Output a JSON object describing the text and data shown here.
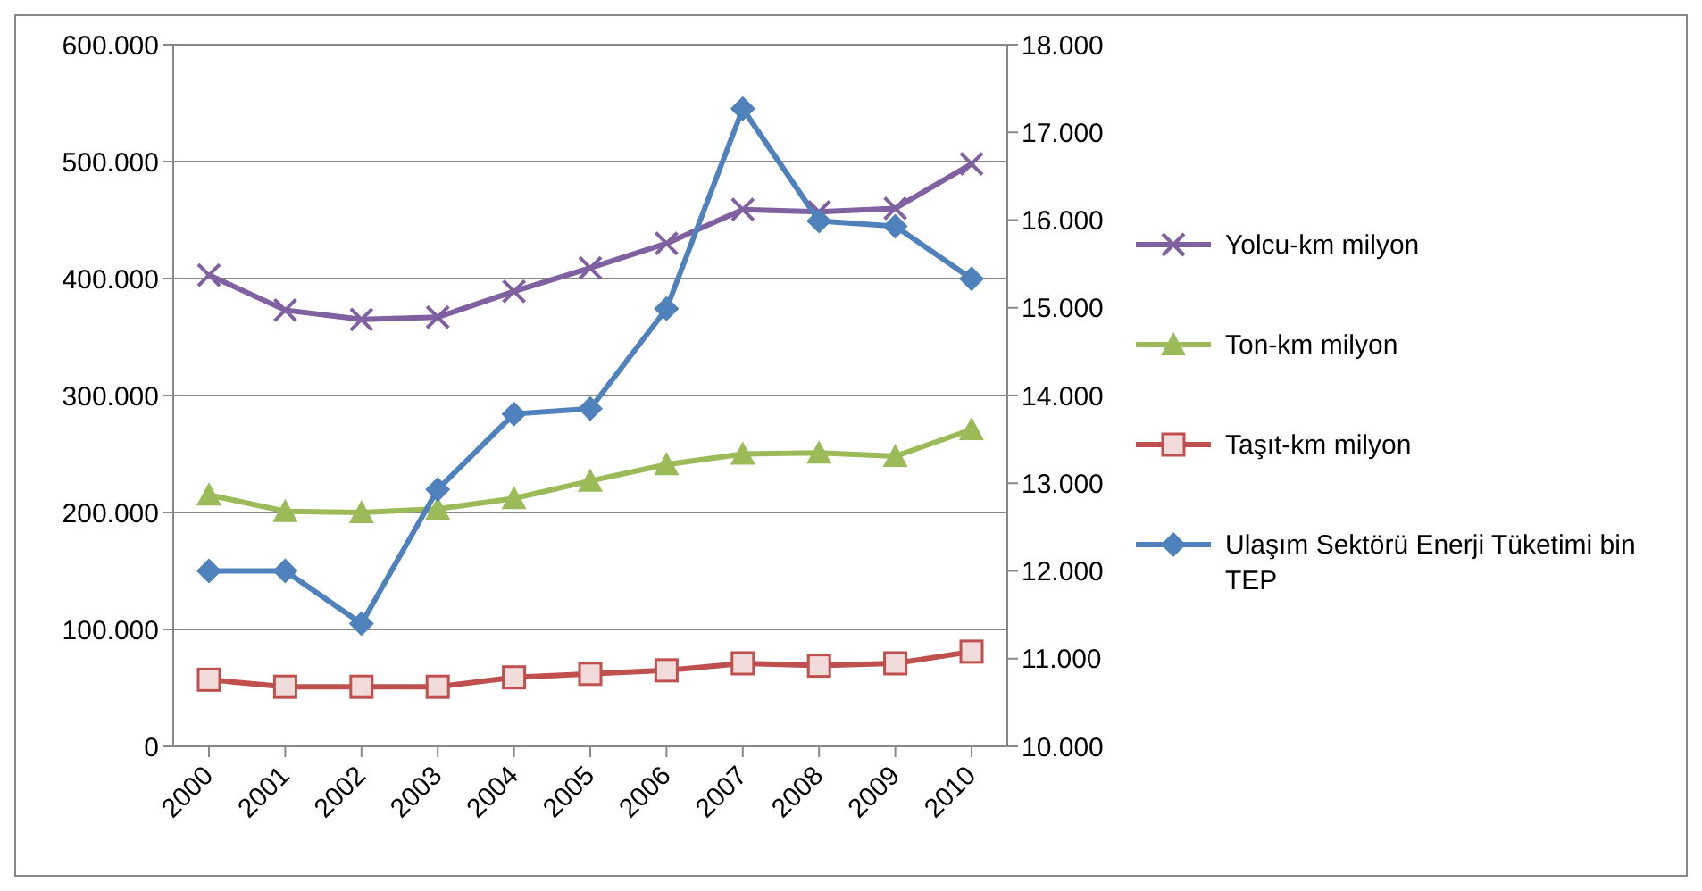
{
  "chart_data": {
    "type": "line",
    "categories": [
      "2000",
      "2001",
      "2002",
      "2003",
      "2004",
      "2005",
      "2006",
      "2007",
      "2008",
      "2009",
      "2010"
    ],
    "series": [
      {
        "name": "Yolcu-km milyon",
        "color": "#7f60a0",
        "marker": "cross",
        "values": [
          403000,
          373000,
          365000,
          367000,
          389000,
          409000,
          430000,
          459000,
          457000,
          460000,
          498000
        ]
      },
      {
        "name": "Ton-km milyon",
        "color": "#9bbb59",
        "marker": "triangle",
        "values": [
          215000,
          201000,
          200000,
          203000,
          212000,
          227000,
          241000,
          250000,
          251000,
          248000,
          271000
        ]
      },
      {
        "name": "Taşıt-km milyon",
        "color": "#c0504d",
        "marker": "square",
        "values": [
          57000,
          51000,
          51000,
          51000,
          59000,
          62000,
          65000,
          71000,
          69000,
          71000,
          81000
        ]
      },
      {
        "name": "Ulaşım Sektörü Enerji Tüketimi bin TEP",
        "color": "#4f81bd",
        "marker": "diamond",
        "axis": "y2",
        "values": [
          12000,
          12000,
          11400,
          12930,
          13790,
          13850,
          14990,
          17270,
          15990,
          15930,
          15330
        ]
      }
    ],
    "ylim": [
      0,
      600000
    ],
    "yticks": [
      {
        "value": 0,
        "label": "0"
      },
      {
        "value": 100000,
        "label": "100.000"
      },
      {
        "value": 200000,
        "label": "200.000"
      },
      {
        "value": 300000,
        "label": "300.000"
      },
      {
        "value": 400000,
        "label": "400.000"
      },
      {
        "value": 500000,
        "label": "500.000"
      },
      {
        "value": 600000,
        "label": "600.000"
      }
    ],
    "y2lim": [
      10000,
      18000
    ],
    "y2ticks": [
      {
        "value": 10000,
        "label": "10.000"
      },
      {
        "value": 11000,
        "label": "11.000"
      },
      {
        "value": 12000,
        "label": "12.000"
      },
      {
        "value": 13000,
        "label": "13.000"
      },
      {
        "value": 14000,
        "label": "14.000"
      },
      {
        "value": 15000,
        "label": "15.000"
      },
      {
        "value": 16000,
        "label": "16.000"
      },
      {
        "value": 17000,
        "label": "17.000"
      },
      {
        "value": 18000,
        "label": "18.000"
      }
    ],
    "grid": "y",
    "legend": "right",
    "line_style": "solid"
  }
}
